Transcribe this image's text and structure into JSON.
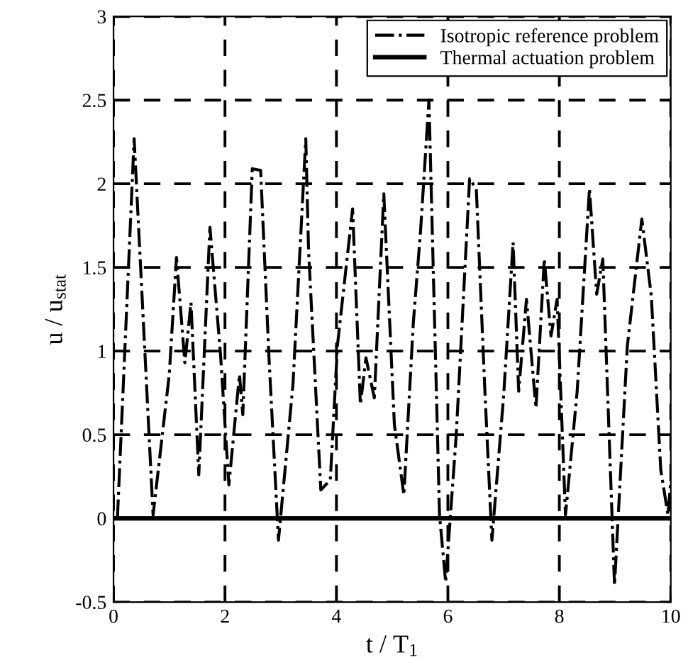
{
  "chart_data": {
    "type": "line",
    "xlabel": "t / T$_{1}$",
    "ylabel": "u / u$_{stat}$",
    "xlim": [
      0,
      10
    ],
    "ylim": [
      -0.5,
      3
    ],
    "xticks": [
      0,
      2,
      4,
      6,
      8,
      10
    ],
    "yticks": [
      -0.5,
      0,
      0.5,
      1,
      1.5,
      2,
      2.5,
      3
    ],
    "grid": true,
    "legend": "top right",
    "marker": "none",
    "series": [
      {
        "name": "Isotropic reference problem",
        "color": "#000000",
        "line_style": "dashdot",
        "x": [
          0.07,
          0.37,
          0.71,
          1.0,
          1.13,
          1.28,
          1.39,
          1.53,
          1.73,
          1.92,
          2.07,
          2.26,
          2.32,
          2.49,
          2.64,
          2.79,
          2.96,
          3.22,
          3.45,
          3.5,
          3.72,
          3.89,
          4.02,
          4.29,
          4.43,
          4.53,
          4.68,
          4.85,
          5.04,
          5.21,
          5.38,
          5.51,
          5.66,
          5.85,
          5.96,
          6.15,
          6.39,
          6.51,
          6.66,
          6.79,
          7.0,
          7.17,
          7.27,
          7.41,
          7.58,
          7.73,
          7.85,
          7.96,
          8.11,
          8.32,
          8.54,
          8.67,
          8.78,
          8.99,
          9.22,
          9.48,
          9.65,
          9.82,
          9.95,
          10.0
        ],
        "values": [
          0.0,
          2.27,
          0.02,
          0.86,
          1.56,
          0.93,
          1.29,
          0.26,
          1.74,
          0.98,
          0.2,
          0.86,
          0.62,
          2.09,
          2.08,
          0.96,
          -0.13,
          0.8,
          2.27,
          1.6,
          0.17,
          0.23,
          1.04,
          1.85,
          0.68,
          0.96,
          0.72,
          1.94,
          0.56,
          0.14,
          1.17,
          1.72,
          2.5,
          0.02,
          -0.38,
          0.5,
          2.03,
          1.97,
          0.79,
          -0.13,
          0.73,
          1.65,
          0.76,
          1.31,
          0.66,
          1.55,
          1.09,
          1.31,
          0.02,
          0.76,
          1.97,
          1.34,
          1.55,
          -0.4,
          1.03,
          1.79,
          1.33,
          0.29,
          0.02,
          0.23
        ]
      },
      {
        "name": "Thermal actuation problem",
        "color": "#000000",
        "line_style": "solid",
        "x": [
          0,
          10
        ],
        "values": [
          0,
          0
        ]
      }
    ]
  }
}
